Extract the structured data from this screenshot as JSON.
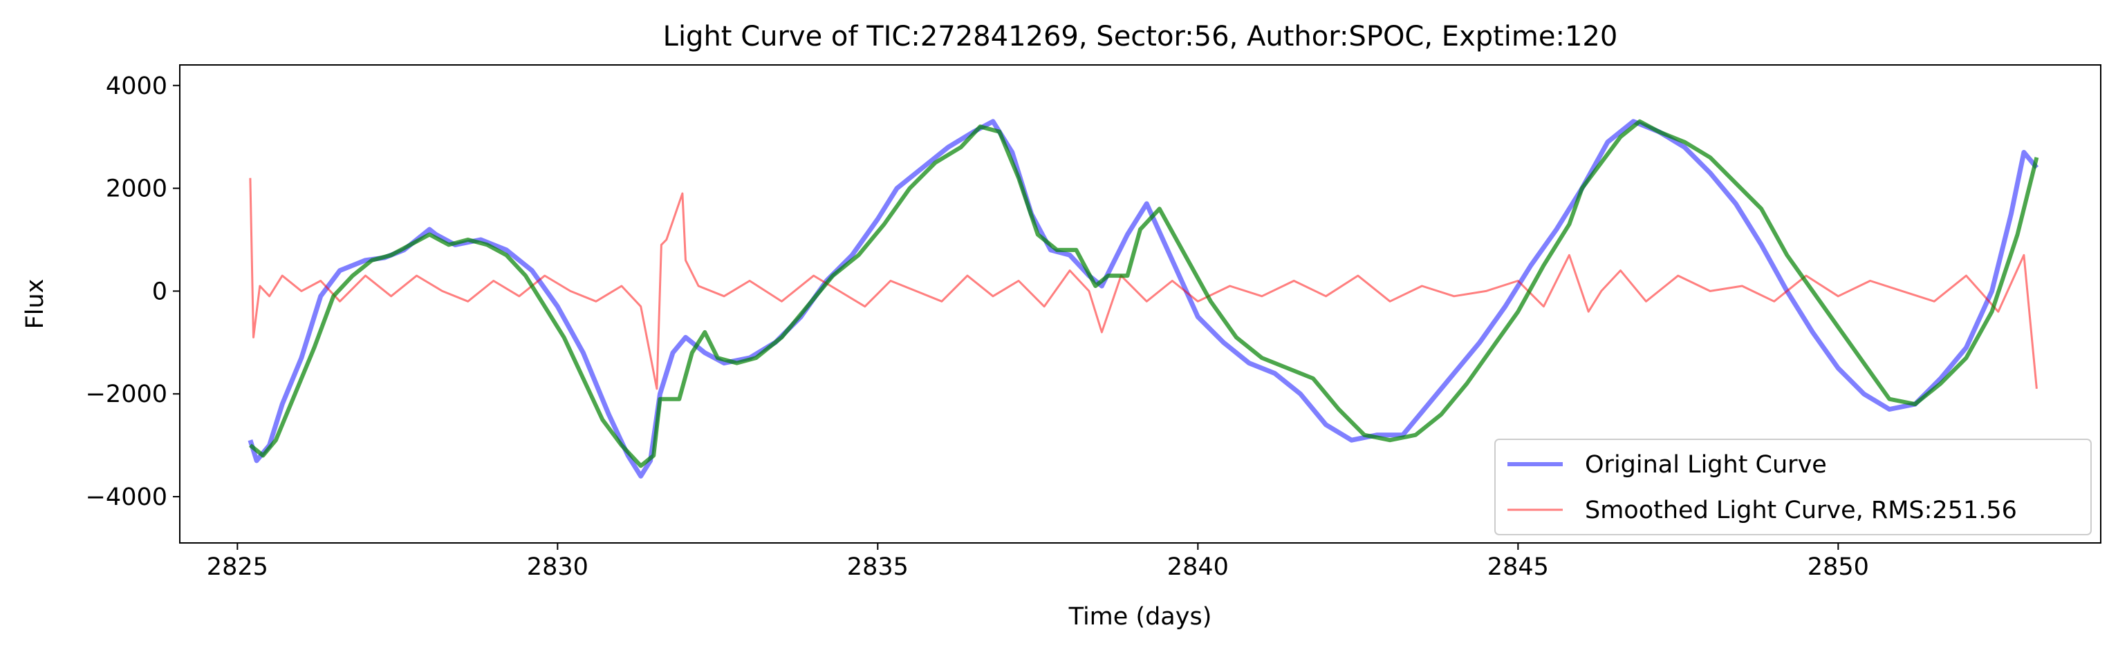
{
  "chart_data": {
    "type": "line",
    "title": "Light Curve of TIC:272841269, Sector:56, Author:SPOC, Exptime:120",
    "xlabel": "Time (days)",
    "ylabel": "Flux",
    "xlim": [
      2824.1,
      2854.1
    ],
    "ylim": [
      -4900,
      4400
    ],
    "x_ticks": [
      2825,
      2830,
      2835,
      2840,
      2845,
      2850
    ],
    "x_tick_labels": [
      "2825",
      "2830",
      "2835",
      "2840",
      "2845",
      "2850"
    ],
    "y_ticks": [
      -4000,
      -2000,
      0,
      2000,
      4000
    ],
    "y_tick_labels": [
      "−4000",
      "−2000",
      "0",
      "2000",
      "4000"
    ],
    "grid": false,
    "legend_position": "lower right",
    "legend": [
      "Original Light Curve",
      "Smoothed Light Curve, RMS:251.56"
    ],
    "series": [
      {
        "name": "Original Light Curve",
        "color": "#0000ff",
        "opacity": 0.5,
        "x": [
          2825.2,
          2825.3,
          2825.5,
          2825.7,
          2826.0,
          2826.3,
          2826.6,
          2827.0,
          2827.3,
          2827.6,
          2828.0,
          2828.1,
          2828.4,
          2828.8,
          2829.2,
          2829.6,
          2830.0,
          2830.4,
          2830.8,
          2831.1,
          2831.3,
          2831.45,
          2831.6,
          2831.8,
          2832.0,
          2832.3,
          2832.6,
          2833.0,
          2833.4,
          2833.8,
          2834.2,
          2834.6,
          2835.0,
          2835.3,
          2835.7,
          2836.1,
          2836.5,
          2836.8,
          2837.1,
          2837.4,
          2837.7,
          2838.0,
          2838.3,
          2838.5,
          2838.9,
          2839.2,
          2839.6,
          2840.0,
          2840.4,
          2840.8,
          2841.2,
          2841.6,
          2842.0,
          2842.4,
          2842.8,
          2843.2,
          2843.6,
          2844.0,
          2844.4,
          2844.8,
          2845.2,
          2845.6,
          2846.0,
          2846.4,
          2846.8,
          2847.2,
          2847.6,
          2848.0,
          2848.4,
          2848.8,
          2849.2,
          2849.6,
          2850.0,
          2850.4,
          2850.8,
          2851.2,
          2851.6,
          2852.0,
          2852.4,
          2852.7,
          2852.9,
          2853.1
        ],
        "y": [
          -2900,
          -3300,
          -3000,
          -2200,
          -1300,
          -100,
          400,
          600,
          650,
          800,
          1200,
          1100,
          900,
          1000,
          800,
          400,
          -300,
          -1200,
          -2400,
          -3200,
          -3600,
          -3300,
          -2000,
          -1200,
          -900,
          -1200,
          -1400,
          -1300,
          -1000,
          -500,
          200,
          700,
          1400,
          2000,
          2400,
          2800,
          3100,
          3300,
          2700,
          1500,
          800,
          700,
          300,
          100,
          1100,
          1700,
          600,
          -500,
          -1000,
          -1400,
          -1600,
          -2000,
          -2600,
          -2900,
          -2800,
          -2800,
          -2200,
          -1600,
          -1000,
          -300,
          500,
          1200,
          2000,
          2900,
          3300,
          3100,
          2800,
          2300,
          1700,
          900,
          0,
          -800,
          -1500,
          -2000,
          -2300,
          -2200,
          -1700,
          -1100,
          0,
          1500,
          2700,
          2400
        ]
      },
      {
        "name": "Smoothed Light Curve, RMS:251.56",
        "color": "#ff0000",
        "opacity": 0.5,
        "x": [
          2825.2,
          2825.25,
          2825.35,
          2825.5,
          2825.7,
          2826.0,
          2826.3,
          2826.6,
          2827.0,
          2827.4,
          2827.8,
          2828.2,
          2828.6,
          2829.0,
          2829.4,
          2829.8,
          2830.2,
          2830.6,
          2831.0,
          2831.3,
          2831.55,
          2831.62,
          2831.7,
          2831.95,
          2832.0,
          2832.2,
          2832.6,
          2833.0,
          2833.5,
          2834.0,
          2834.4,
          2834.8,
          2835.2,
          2835.6,
          2836.0,
          2836.4,
          2836.8,
          2837.2,
          2837.6,
          2838.0,
          2838.3,
          2838.5,
          2838.8,
          2839.2,
          2839.6,
          2840.0,
          2840.5,
          2841.0,
          2841.5,
          2842.0,
          2842.5,
          2843.0,
          2843.5,
          2844.0,
          2844.5,
          2845.0,
          2845.4,
          2845.8,
          2846.1,
          2846.3,
          2846.6,
          2847.0,
          2847.5,
          2848.0,
          2848.5,
          2849.0,
          2849.5,
          2850.0,
          2850.5,
          2851.0,
          2851.5,
          2852.0,
          2852.5,
          2852.9,
          2853.1
        ],
        "y": [
          2200,
          -900,
          100,
          -100,
          300,
          0,
          200,
          -200,
          300,
          -100,
          300,
          0,
          -200,
          200,
          -100,
          300,
          0,
          -200,
          100,
          -300,
          -1900,
          900,
          1000,
          1900,
          600,
          100,
          -100,
          200,
          -200,
          300,
          0,
          -300,
          200,
          0,
          -200,
          300,
          -100,
          200,
          -300,
          400,
          0,
          -800,
          300,
          -200,
          200,
          -200,
          100,
          -100,
          200,
          -100,
          300,
          -200,
          100,
          -100,
          0,
          200,
          -300,
          700,
          -400,
          0,
          400,
          -200,
          300,
          0,
          100,
          -200,
          300,
          -100,
          200,
          0,
          -200,
          300,
          -400,
          700,
          -1900
        ]
      },
      {
        "name": "",
        "color": "#008000",
        "opacity": 0.7,
        "x": [
          2825.2,
          2825.4,
          2825.6,
          2825.9,
          2826.2,
          2826.5,
          2826.8,
          2827.1,
          2827.4,
          2827.7,
          2828.0,
          2828.3,
          2828.6,
          2828.9,
          2829.2,
          2829.5,
          2829.8,
          2830.1,
          2830.4,
          2830.7,
          2831.0,
          2831.3,
          2831.5,
          2831.6,
          2831.9,
          2832.1,
          2832.3,
          2832.5,
          2832.8,
          2833.1,
          2833.5,
          2833.9,
          2834.3,
          2834.7,
          2835.1,
          2835.5,
          2835.9,
          2836.3,
          2836.6,
          2836.9,
          2837.2,
          2837.5,
          2837.8,
          2838.1,
          2838.4,
          2838.6,
          2838.9,
          2839.1,
          2839.4,
          2839.8,
          2840.2,
          2840.6,
          2841.0,
          2841.4,
          2841.8,
          2842.2,
          2842.6,
          2843.0,
          2843.4,
          2843.8,
          2844.2,
          2844.6,
          2845.0,
          2845.4,
          2845.8,
          2846.0,
          2846.3,
          2846.6,
          2846.9,
          2847.2,
          2847.6,
          2848.0,
          2848.4,
          2848.8,
          2849.2,
          2849.6,
          2850.0,
          2850.4,
          2850.8,
          2851.2,
          2851.6,
          2852.0,
          2852.4,
          2852.8,
          2853.1
        ],
        "y": [
          -3000,
          -3200,
          -2900,
          -2000,
          -1100,
          -100,
          300,
          600,
          700,
          900,
          1100,
          900,
          1000,
          900,
          700,
          300,
          -300,
          -900,
          -1700,
          -2500,
          -3000,
          -3400,
          -3200,
          -2100,
          -2100,
          -1200,
          -800,
          -1300,
          -1400,
          -1300,
          -900,
          -300,
          300,
          700,
          1300,
          2000,
          2500,
          2800,
          3200,
          3100,
          2200,
          1100,
          800,
          800,
          100,
          300,
          300,
          1200,
          1600,
          700,
          -200,
          -900,
          -1300,
          -1500,
          -1700,
          -2300,
          -2800,
          -2900,
          -2800,
          -2400,
          -1800,
          -1100,
          -400,
          500,
          1300,
          2000,
          2500,
          3000,
          3300,
          3100,
          2900,
          2600,
          2100,
          1600,
          700,
          0,
          -700,
          -1400,
          -2100,
          -2200,
          -1800,
          -1300,
          -400,
          1100,
          2600
        ]
      }
    ]
  }
}
